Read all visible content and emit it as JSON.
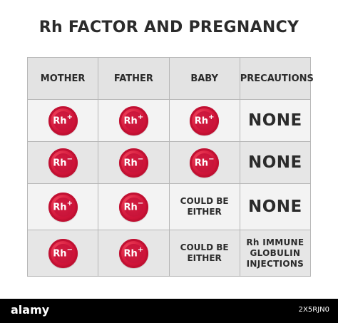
{
  "title": "Rh FACTOR AND PREGNANCY",
  "columns": [
    "MOTHER",
    "FATHER",
    "BABY",
    "PRECAUTIONS"
  ],
  "rows": [
    {
      "mother": {
        "text": "Rh",
        "sign": "+"
      },
      "father": {
        "text": "Rh",
        "sign": "+"
      },
      "baby": {
        "text": "Rh",
        "sign": "+"
      },
      "precautions": "NONE"
    },
    {
      "mother": {
        "text": "Rh",
        "sign": "−"
      },
      "father": {
        "text": "Rh",
        "sign": "−"
      },
      "baby": {
        "text": "Rh",
        "sign": "−"
      },
      "precautions": "NONE"
    },
    {
      "mother": {
        "text": "Rh",
        "sign": "+"
      },
      "father": {
        "text": "Rh",
        "sign": "−"
      },
      "baby_line1": "COULD BE",
      "baby_line2": "EITHER",
      "precautions": "NONE"
    },
    {
      "mother": {
        "text": "Rh",
        "sign": "−"
      },
      "father": {
        "text": "Rh",
        "sign": "+"
      },
      "baby_line1": "COULD BE",
      "baby_line2": "EITHER",
      "precautions_line1": "Rh IMMUNE",
      "precautions_line2": "GLOBULIN",
      "precautions_line3": "INJECTIONS"
    }
  ],
  "colors": {
    "rh_red": "#d1153a",
    "header_bg": "#e3e3e3",
    "row_light": "#f3f3f3",
    "row_dark": "#e6e6e6",
    "text": "#2b2b2b"
  },
  "footer": {
    "logo": "alamy",
    "image_id": "2X5RJN0"
  }
}
